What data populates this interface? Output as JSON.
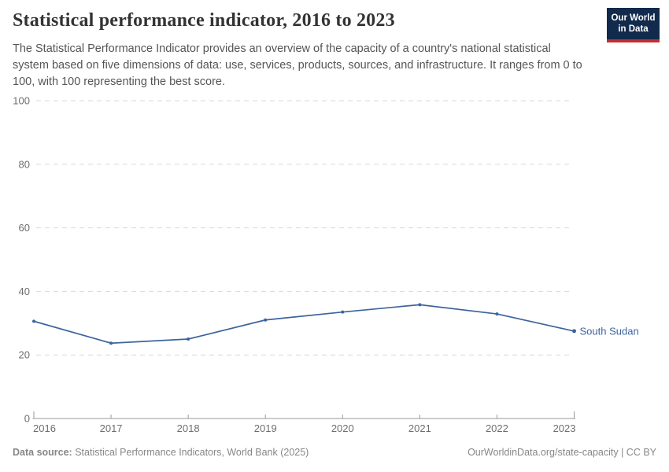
{
  "header": {
    "title": "Statistical performance indicator, 2016 to 2023",
    "subtitle": "The Statistical Performance Indicator provides an overview of the capacity of a country's national statistical system based on five dimensions of data: use, services, products, sources, and infrastructure. It ranges from 0 to 100, with 100 representing the best score.",
    "logo": {
      "line1": "Our World",
      "line2": "in Data"
    }
  },
  "chart_data": {
    "type": "line",
    "title": "Statistical performance indicator, 2016 to 2023",
    "x": [
      2016,
      2017,
      2018,
      2019,
      2020,
      2021,
      2022,
      2023
    ],
    "series": [
      {
        "name": "South Sudan",
        "values": [
          30.6,
          23.7,
          25.0,
          31.0,
          33.5,
          35.8,
          32.9,
          27.5
        ],
        "color": "#3d649c"
      }
    ],
    "xlabel": "",
    "ylabel": "",
    "ylim": [
      0,
      100
    ],
    "yticks": [
      0,
      20,
      40,
      60,
      80,
      100
    ],
    "grid": "horizontal dashed",
    "legend_position": "end-of-line label"
  },
  "footer": {
    "source_label": "Data source:",
    "source_text": "Statistical Performance Indicators, World Bank (2025)",
    "link_text": "OurWorldinData.org/state-capacity | CC BY"
  },
  "colors": {
    "series_line": "#3d649c",
    "logo_background": "#122a4c",
    "logo_stripe": "#c22f33",
    "gridline": "#d9d9d9",
    "axis": "#999999",
    "tick_text": "#6e6e6e"
  }
}
